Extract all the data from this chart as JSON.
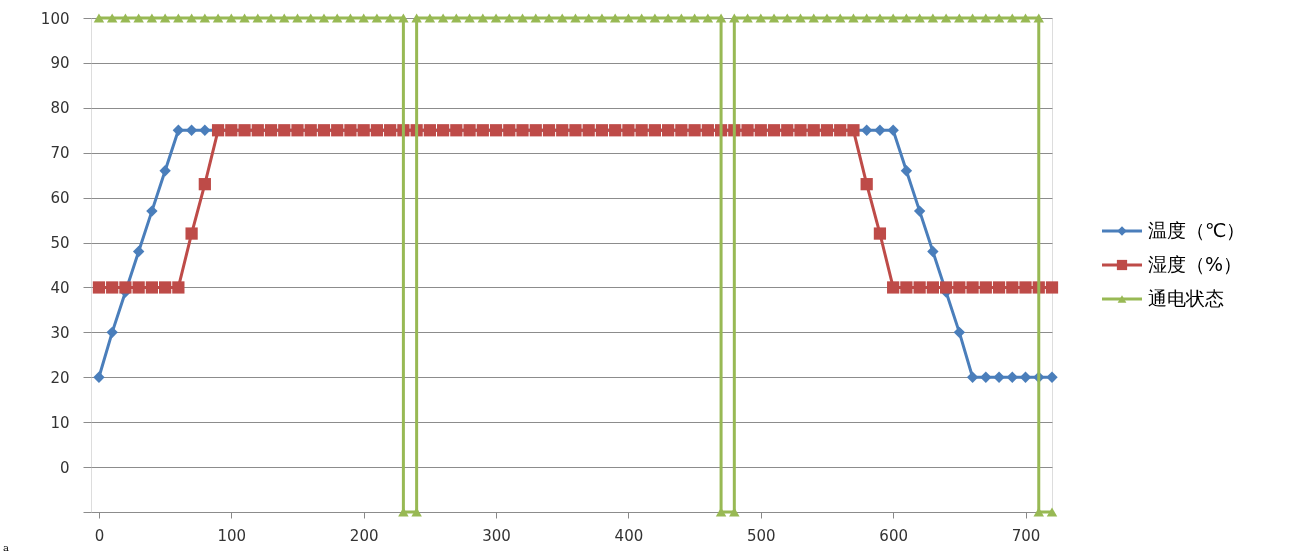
{
  "chart_data": {
    "type": "line",
    "xlim": [
      -6,
      720
    ],
    "xticks": [
      0,
      100,
      200,
      300,
      400,
      500,
      600,
      700
    ],
    "ylim": [
      -10,
      100
    ],
    "yticks": [
      {
        "value": -10,
        "label": null
      },
      0,
      10,
      20,
      30,
      40,
      50,
      60,
      70,
      80,
      90,
      100
    ],
    "grid": "y",
    "legend": "right",
    "annotations": [
      "a"
    ],
    "series": [
      {
        "name": "温度（℃）",
        "color": "#4a7ebb",
        "marker": "diamond",
        "x": [
          0,
          10,
          20,
          30,
          40,
          50,
          60,
          70,
          80,
          580,
          590,
          600,
          610,
          620,
          630,
          640,
          650,
          660,
          670,
          680,
          690,
          700,
          710,
          720
        ],
        "values": [
          20,
          30,
          39,
          48,
          57,
          66,
          75,
          75,
          75,
          75,
          75,
          75,
          66,
          57,
          48,
          39,
          30,
          20,
          20,
          20,
          20,
          20,
          20,
          20
        ]
      },
      {
        "name": "湿度（%）",
        "color": "#be4b48",
        "marker": "square",
        "x": [
          0,
          10,
          20,
          30,
          40,
          50,
          60,
          70,
          80,
          90,
          100,
          110,
          120,
          130,
          140,
          150,
          160,
          170,
          180,
          190,
          200,
          210,
          220,
          230,
          240,
          250,
          260,
          270,
          280,
          290,
          300,
          310,
          320,
          330,
          340,
          350,
          360,
          370,
          380,
          390,
          400,
          410,
          420,
          430,
          440,
          450,
          460,
          470,
          480,
          490,
          500,
          510,
          520,
          530,
          540,
          550,
          560,
          570,
          580,
          590,
          600,
          610,
          620,
          630,
          640,
          650,
          660,
          670,
          680,
          690,
          700,
          710,
          720
        ],
        "values": [
          40,
          40,
          40,
          40,
          40,
          40,
          40,
          52,
          63,
          75,
          75,
          75,
          75,
          75,
          75,
          75,
          75,
          75,
          75,
          75,
          75,
          75,
          75,
          75,
          75,
          75,
          75,
          75,
          75,
          75,
          75,
          75,
          75,
          75,
          75,
          75,
          75,
          75,
          75,
          75,
          75,
          75,
          75,
          75,
          75,
          75,
          75,
          75,
          75,
          75,
          75,
          75,
          75,
          75,
          75,
          75,
          75,
          75,
          63,
          52,
          40,
          40,
          40,
          40,
          40,
          40,
          40,
          40,
          40,
          40,
          40,
          40,
          40
        ]
      },
      {
        "name": "通电状态",
        "color": "#98b954",
        "marker": "triangle",
        "x": [
          0,
          10,
          20,
          30,
          40,
          50,
          60,
          70,
          80,
          90,
          100,
          110,
          120,
          130,
          140,
          150,
          160,
          170,
          180,
          190,
          200,
          210,
          220,
          230,
          230,
          240,
          240,
          250,
          260,
          270,
          280,
          290,
          300,
          310,
          320,
          330,
          340,
          350,
          360,
          370,
          380,
          390,
          400,
          410,
          420,
          430,
          440,
          450,
          460,
          470,
          470,
          480,
          480,
          490,
          500,
          510,
          520,
          530,
          540,
          550,
          560,
          570,
          580,
          590,
          600,
          610,
          620,
          630,
          640,
          650,
          660,
          670,
          680,
          690,
          700,
          710,
          710,
          720
        ],
        "values": [
          100,
          100,
          100,
          100,
          100,
          100,
          100,
          100,
          100,
          100,
          100,
          100,
          100,
          100,
          100,
          100,
          100,
          100,
          100,
          100,
          100,
          100,
          100,
          100,
          -10,
          -10,
          100,
          100,
          100,
          100,
          100,
          100,
          100,
          100,
          100,
          100,
          100,
          100,
          100,
          100,
          100,
          100,
          100,
          100,
          100,
          100,
          100,
          100,
          100,
          100,
          -10,
          -10,
          100,
          100,
          100,
          100,
          100,
          100,
          100,
          100,
          100,
          100,
          100,
          100,
          100,
          100,
          100,
          100,
          100,
          100,
          100,
          100,
          100,
          100,
          100,
          100,
          -10,
          -10
        ]
      }
    ]
  }
}
